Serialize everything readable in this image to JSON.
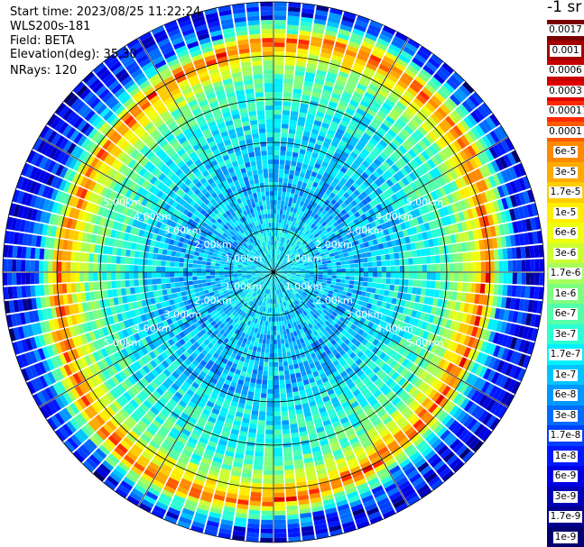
{
  "header": {
    "start_time": "Start time: 2023/08/25 11:22:24",
    "instrument": "WLS200s-181",
    "field": "Field: BETA",
    "elevation": "Elevation(deg): 35.30",
    "nrays": "NRays: 120"
  },
  "colorbar": {
    "unit": "-1 sr",
    "entries": [
      {
        "label": "0.0017",
        "color": "#7a0000"
      },
      {
        "label": "0.001",
        "color": "#a80000"
      },
      {
        "label": "0.0006",
        "color": "#c80000"
      },
      {
        "label": "0.0003",
        "color": "#e00000"
      },
      {
        "label": "0.00017",
        "color": "#ff2a00"
      },
      {
        "label": "0.0001",
        "color": "#ff5a00"
      },
      {
        "label": "6e-5",
        "color": "#ff8a00"
      },
      {
        "label": "3e-5",
        "color": "#ffaa00"
      },
      {
        "label": "1.7e-5",
        "color": "#ffcc00"
      },
      {
        "label": "1e-5",
        "color": "#ffee00"
      },
      {
        "label": "6e-6",
        "color": "#eeff10"
      },
      {
        "label": "3e-6",
        "color": "#ccff33"
      },
      {
        "label": "1.7e-6",
        "color": "#a6ff5a"
      },
      {
        "label": "1e-6",
        "color": "#7fff7f"
      },
      {
        "label": "6e-7",
        "color": "#55ffaa"
      },
      {
        "label": "3e-7",
        "color": "#2bffd4"
      },
      {
        "label": "1.7e-7",
        "color": "#00f0ff"
      },
      {
        "label": "1e-7",
        "color": "#00c4ff"
      },
      {
        "label": "6e-8",
        "color": "#0098ff"
      },
      {
        "label": "3e-8",
        "color": "#006cff"
      },
      {
        "label": "1.7e-8",
        "color": "#0040ff"
      },
      {
        "label": "1e-8",
        "color": "#0018ff"
      },
      {
        "label": "6e-9",
        "color": "#0000e4"
      },
      {
        "label": "3e-9",
        "color": "#0000b8"
      },
      {
        "label": "1.7e-9",
        "color": "#00008c"
      },
      {
        "label": "1e-9",
        "color": "#000070"
      }
    ]
  },
  "chart_data": {
    "type": "heatmap",
    "projection": "polar PPI",
    "field": "BETA",
    "nrays": 120,
    "range_rings_km": [
      1,
      2,
      3,
      4,
      5
    ],
    "ring_labels": [
      "1.00km",
      "2.00km",
      "3.00km",
      "4.00km",
      "5.00km"
    ],
    "max_range_km": 5.0,
    "radial_profile": [
      {
        "range_km": 0.5,
        "beta": 1.7e-07
      },
      {
        "range_km": 1.0,
        "beta": 1e-07
      },
      {
        "range_km": 2.0,
        "beta": 1e-07
      },
      {
        "range_km": 3.0,
        "beta": 3e-07
      },
      {
        "range_km": 3.5,
        "beta": 6e-07
      },
      {
        "range_km": 3.9,
        "beta": 1e-05
      },
      {
        "range_km": 4.1,
        "beta": 0.0001
      },
      {
        "range_km": 4.3,
        "beta": 1e-06
      },
      {
        "range_km": 4.6,
        "beta": 3e-08
      },
      {
        "range_km": 5.0,
        "beta": 1e-08
      }
    ],
    "colorscale": "log"
  }
}
